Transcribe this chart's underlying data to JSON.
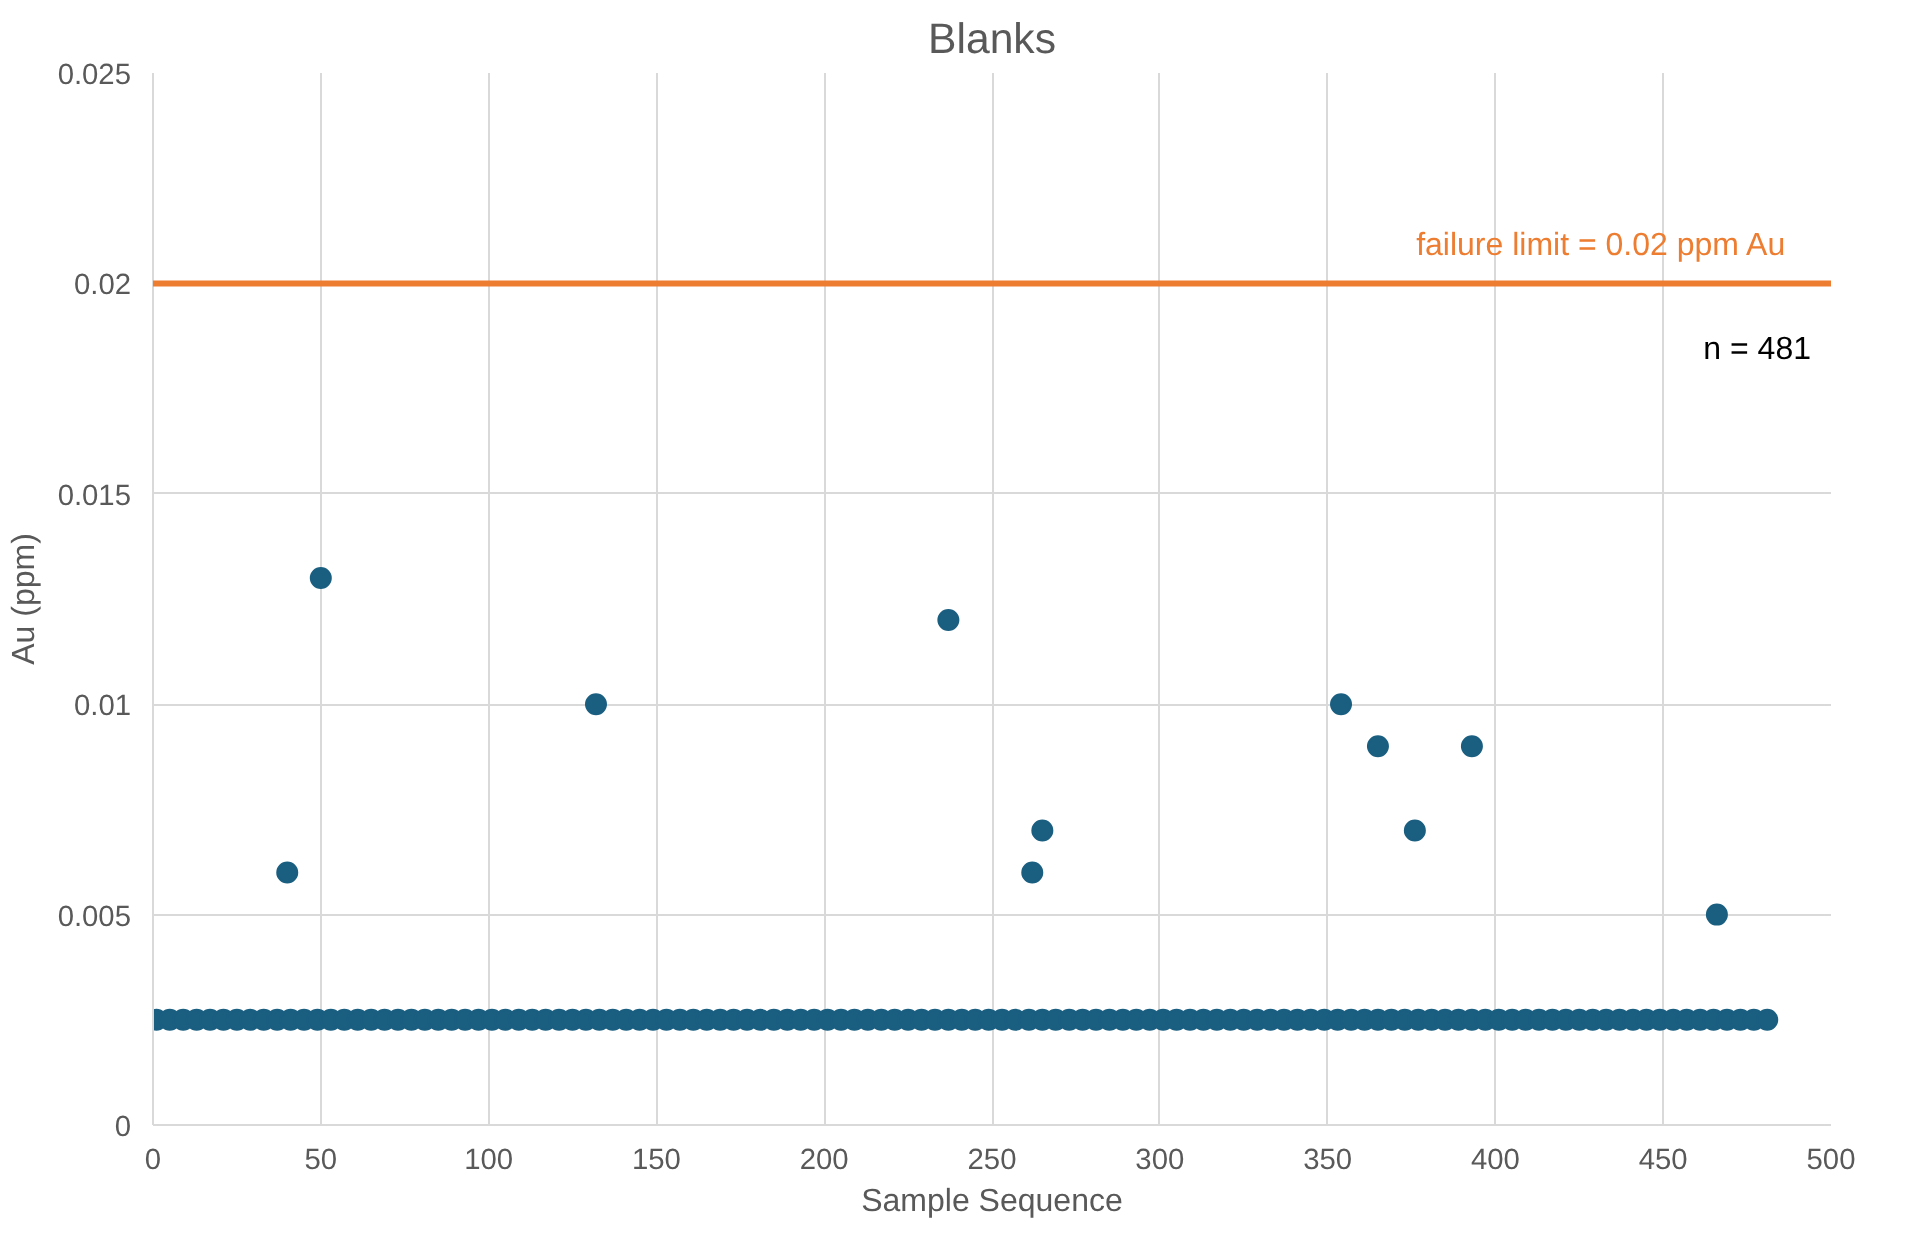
{
  "chart_data": {
    "type": "scatter",
    "title": "Blanks",
    "xlabel": "Sample Sequence",
    "ylabel": "Au (ppm)",
    "xlim": [
      0,
      500
    ],
    "xticks": [
      0,
      50,
      100,
      150,
      200,
      250,
      300,
      350,
      400,
      450,
      500
    ],
    "ylim": [
      0,
      0.025
    ],
    "yticks": [
      0,
      0.005,
      0.01,
      0.015,
      0.02,
      0.025
    ],
    "grid": true,
    "marker": "circle",
    "ref_lines": [
      {
        "axis": "y",
        "value": 0.02,
        "label": "failure limit = 0.02 ppm Au",
        "color": "#ed7d31",
        "line_style": "solid"
      }
    ],
    "annotations": [
      "n = 481"
    ],
    "series": [
      {
        "color": "#1a5e80",
        "x": [
          1,
          5,
          9,
          13,
          17,
          21,
          25,
          29,
          33,
          37,
          41,
          45,
          49,
          53,
          57,
          61,
          65,
          69,
          73,
          77,
          81,
          85,
          89,
          93,
          97,
          101,
          105,
          109,
          113,
          117,
          121,
          125,
          129,
          133,
          137,
          141,
          145,
          149,
          153,
          157,
          161,
          165,
          169,
          173,
          177,
          181,
          185,
          189,
          193,
          197,
          201,
          205,
          209,
          213,
          217,
          221,
          225,
          229,
          233,
          237,
          241,
          245,
          249,
          253,
          257,
          261,
          265,
          269,
          273,
          277,
          281,
          285,
          289,
          293,
          297,
          301,
          305,
          309,
          313,
          317,
          321,
          325,
          329,
          333,
          337,
          341,
          345,
          349,
          353,
          357,
          361,
          365,
          369,
          373,
          377,
          381,
          385,
          389,
          393,
          397,
          401,
          405,
          409,
          413,
          417,
          421,
          425,
          429,
          433,
          437,
          441,
          445,
          449,
          453,
          457,
          461,
          465,
          469,
          473,
          477,
          481,
          40,
          50,
          132,
          237,
          262,
          265,
          354,
          365,
          376,
          393,
          466
        ],
        "values": [
          0.0025,
          0.0025,
          0.0025,
          0.0025,
          0.0025,
          0.0025,
          0.0025,
          0.0025,
          0.0025,
          0.0025,
          0.0025,
          0.0025,
          0.0025,
          0.0025,
          0.0025,
          0.0025,
          0.0025,
          0.0025,
          0.0025,
          0.0025,
          0.0025,
          0.0025,
          0.0025,
          0.0025,
          0.0025,
          0.0025,
          0.0025,
          0.0025,
          0.0025,
          0.0025,
          0.0025,
          0.0025,
          0.0025,
          0.0025,
          0.0025,
          0.0025,
          0.0025,
          0.0025,
          0.0025,
          0.0025,
          0.0025,
          0.0025,
          0.0025,
          0.0025,
          0.0025,
          0.0025,
          0.0025,
          0.0025,
          0.0025,
          0.0025,
          0.0025,
          0.0025,
          0.0025,
          0.0025,
          0.0025,
          0.0025,
          0.0025,
          0.0025,
          0.0025,
          0.0025,
          0.0025,
          0.0025,
          0.0025,
          0.0025,
          0.0025,
          0.0025,
          0.0025,
          0.0025,
          0.0025,
          0.0025,
          0.0025,
          0.0025,
          0.0025,
          0.0025,
          0.0025,
          0.0025,
          0.0025,
          0.0025,
          0.0025,
          0.0025,
          0.0025,
          0.0025,
          0.0025,
          0.0025,
          0.0025,
          0.0025,
          0.0025,
          0.0025,
          0.0025,
          0.0025,
          0.0025,
          0.0025,
          0.0025,
          0.0025,
          0.0025,
          0.0025,
          0.0025,
          0.0025,
          0.0025,
          0.0025,
          0.0025,
          0.0025,
          0.0025,
          0.0025,
          0.0025,
          0.0025,
          0.0025,
          0.0025,
          0.0025,
          0.0025,
          0.0025,
          0.0025,
          0.0025,
          0.0025,
          0.0025,
          0.0025,
          0.0025,
          0.0025,
          0.0025,
          0.0025,
          0.0025,
          0.006,
          0.013,
          0.01,
          0.012,
          0.006,
          0.007,
          0.01,
          0.009,
          0.007,
          0.009,
          0.005
        ]
      }
    ]
  }
}
